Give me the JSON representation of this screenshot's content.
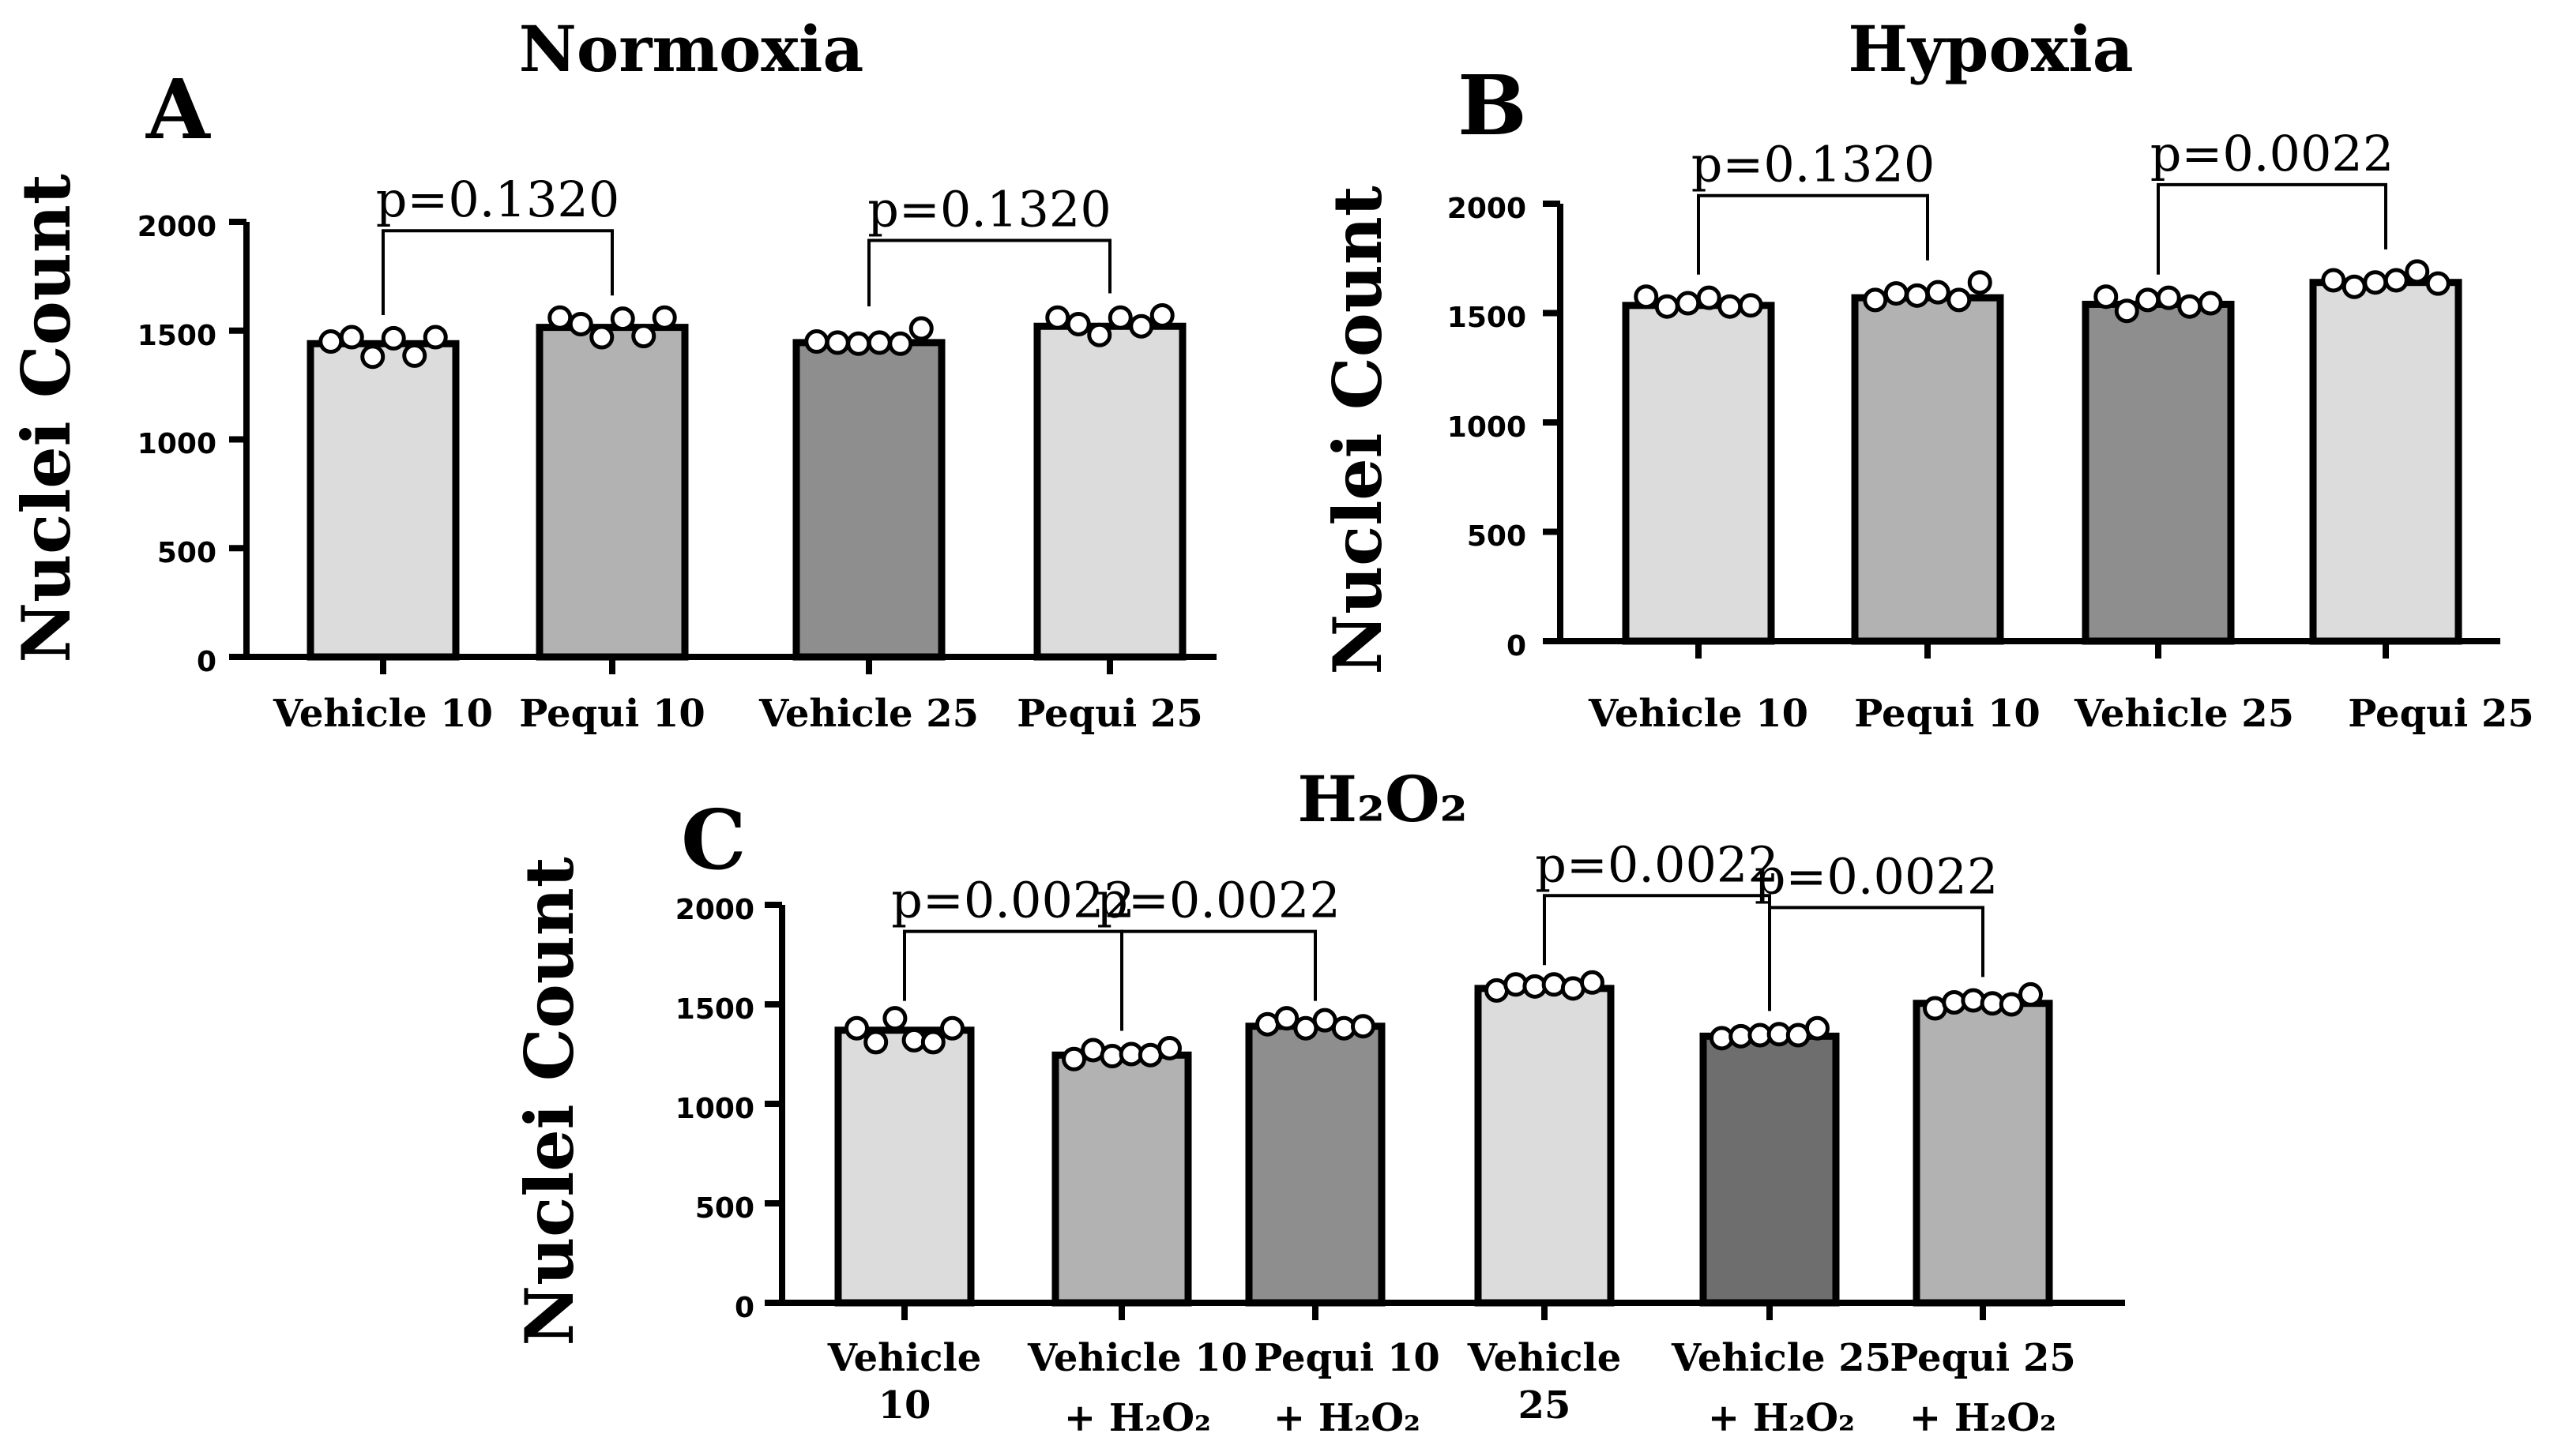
{
  "chart_data": [
    {
      "panel": "A",
      "type": "bar",
      "title": "Normoxia",
      "ylabel": "Nuclei Count",
      "xlabel": "",
      "ylim": [
        0,
        2000
      ],
      "yticks": [
        "0",
        "500",
        "1000",
        "1500",
        "2000"
      ],
      "categories": [
        [
          "Vehicle 10"
        ],
        [
          "Pequi 10"
        ],
        [
          "Vehicle 25"
        ],
        [
          "Pequi 25"
        ]
      ],
      "values": [
        1440,
        1515,
        1445,
        1520
      ],
      "colors": [
        "#dcdcdc",
        "#b2b2b2",
        "#8e8e8e",
        "#dcdcdc"
      ],
      "points": [
        [
          1450,
          1470,
          1380,
          1465,
          1385,
          1470
        ],
        [
          1560,
          1530,
          1470,
          1555,
          1475,
          1560
        ],
        [
          1450,
          1445,
          1440,
          1445,
          1440,
          1510
        ],
        [
          1560,
          1530,
          1480,
          1560,
          1520,
          1570
        ]
      ],
      "comparisons": [
        {
          "from": 0,
          "to": 1,
          "label": "p=0.1320"
        },
        {
          "from": 2,
          "to": 3,
          "label": "p=0.1320"
        }
      ]
    },
    {
      "panel": "B",
      "type": "bar",
      "title": "Hypoxia",
      "ylabel": "Nuclei Count",
      "xlabel": "",
      "ylim": [
        0,
        2000
      ],
      "yticks": [
        "0",
        "500",
        "1000",
        "1500",
        "2000"
      ],
      "categories": [
        [
          "Vehicle 10"
        ],
        [
          "Pequi 10"
        ],
        [
          "Vehicle 25"
        ],
        [
          "Pequi 25"
        ]
      ],
      "values": [
        1535,
        1570,
        1540,
        1640
      ],
      "colors": [
        "#dcdcdc",
        "#b2b2b2",
        "#8e8e8e",
        "#dcdcdc"
      ],
      "points": [
        [
          1575,
          1530,
          1545,
          1570,
          1530,
          1535
        ],
        [
          1560,
          1590,
          1580,
          1595,
          1560,
          1640
        ],
        [
          1575,
          1510,
          1560,
          1570,
          1530,
          1545
        ],
        [
          1650,
          1620,
          1640,
          1650,
          1690,
          1635
        ]
      ],
      "comparisons": [
        {
          "from": 0,
          "to": 1,
          "label": "p=0.1320"
        },
        {
          "from": 2,
          "to": 3,
          "label": "p=0.0022"
        }
      ]
    },
    {
      "panel": "C",
      "type": "bar",
      "title": "H₂O₂",
      "ylabel": "Nuclei Count",
      "xlabel": "",
      "ylim": [
        0,
        2000
      ],
      "yticks": [
        "0",
        "500",
        "1000",
        "1500",
        "2000"
      ],
      "categories": [
        [
          "Vehicle",
          "10"
        ],
        [
          "Vehicle 10",
          "+ H₂O₂"
        ],
        [
          "Pequi 10",
          "+ H₂O₂"
        ],
        [
          "Vehicle",
          "25"
        ],
        [
          "Vehicle 25",
          "+ H₂O₂"
        ],
        [
          "Pequi 25",
          "+ H₂O₂"
        ]
      ],
      "values": [
        1370,
        1245,
        1390,
        1580,
        1340,
        1505
      ],
      "colors": [
        "#dcdcdc",
        "#b2b2b2",
        "#8e8e8e",
        "#dcdcdc",
        "#6e6e6e",
        "#b2b2b2"
      ],
      "points": [
        [
          1380,
          1310,
          1430,
          1320,
          1310,
          1380
        ],
        [
          1225,
          1270,
          1240,
          1250,
          1245,
          1280
        ],
        [
          1400,
          1430,
          1380,
          1420,
          1380,
          1390
        ],
        [
          1570,
          1600,
          1590,
          1600,
          1580,
          1610
        ],
        [
          1330,
          1340,
          1345,
          1350,
          1345,
          1380
        ],
        [
          1480,
          1510,
          1520,
          1505,
          1500,
          1550
        ]
      ],
      "comparisons": [
        {
          "from": 0,
          "to": 1,
          "label": "p=0.0022"
        },
        {
          "from": 1,
          "to": 2,
          "label": "p=0.0022"
        },
        {
          "from": 3,
          "to": 4,
          "label": "p=0.0022"
        },
        {
          "from": 4,
          "to": 5,
          "label": "p=0.0022"
        }
      ]
    }
  ]
}
